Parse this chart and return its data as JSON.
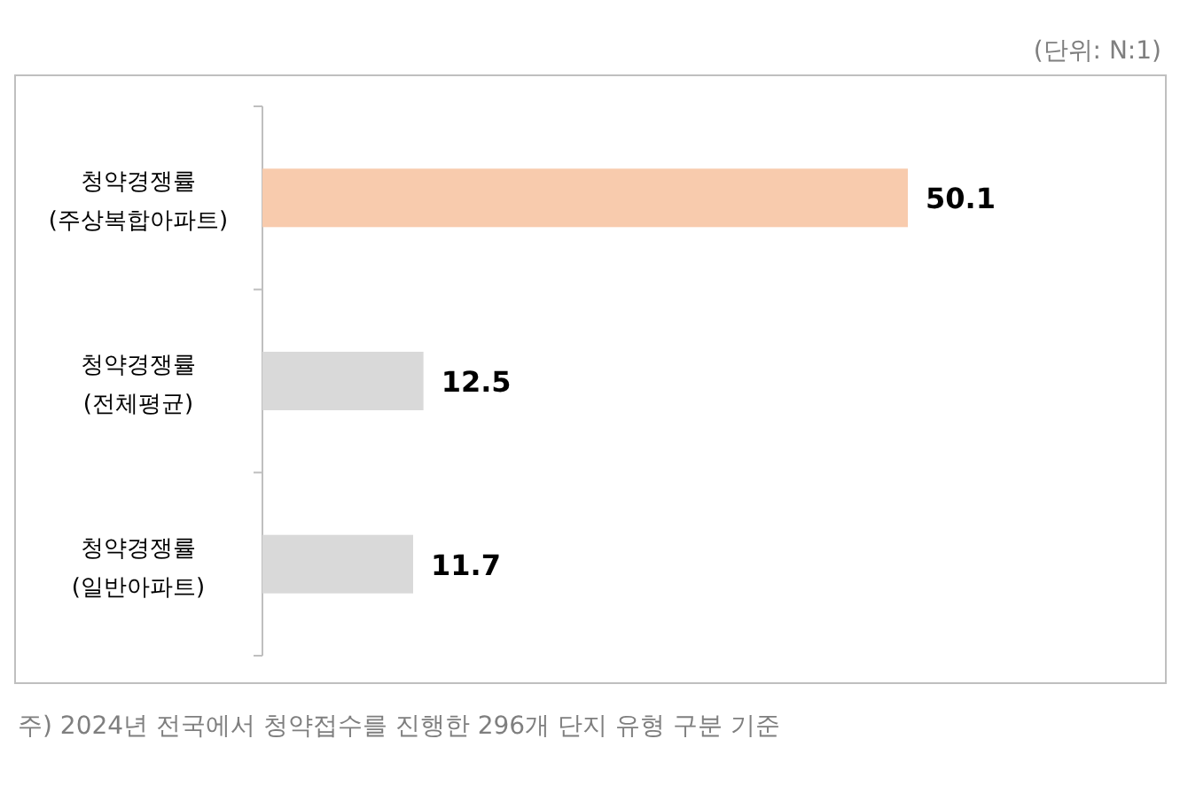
{
  "chart_data": {
    "type": "bar",
    "orientation": "horizontal",
    "categories": [
      "청약경쟁률 (주상복합아파트)",
      "청약경쟁률 (전체평균)",
      "청약경쟁률 (일반아파트)"
    ],
    "values": [
      50.1,
      12.5,
      11.7
    ],
    "colors": [
      "#f8cbad",
      "#d9d9d9",
      "#d9d9d9"
    ],
    "data_labels": true,
    "annotations": [
      "(단위: N:1)",
      "주) 2024년 전국에서 청약접수를 진행한 296개 단지 유형 구분 기준"
    ]
  }
}
